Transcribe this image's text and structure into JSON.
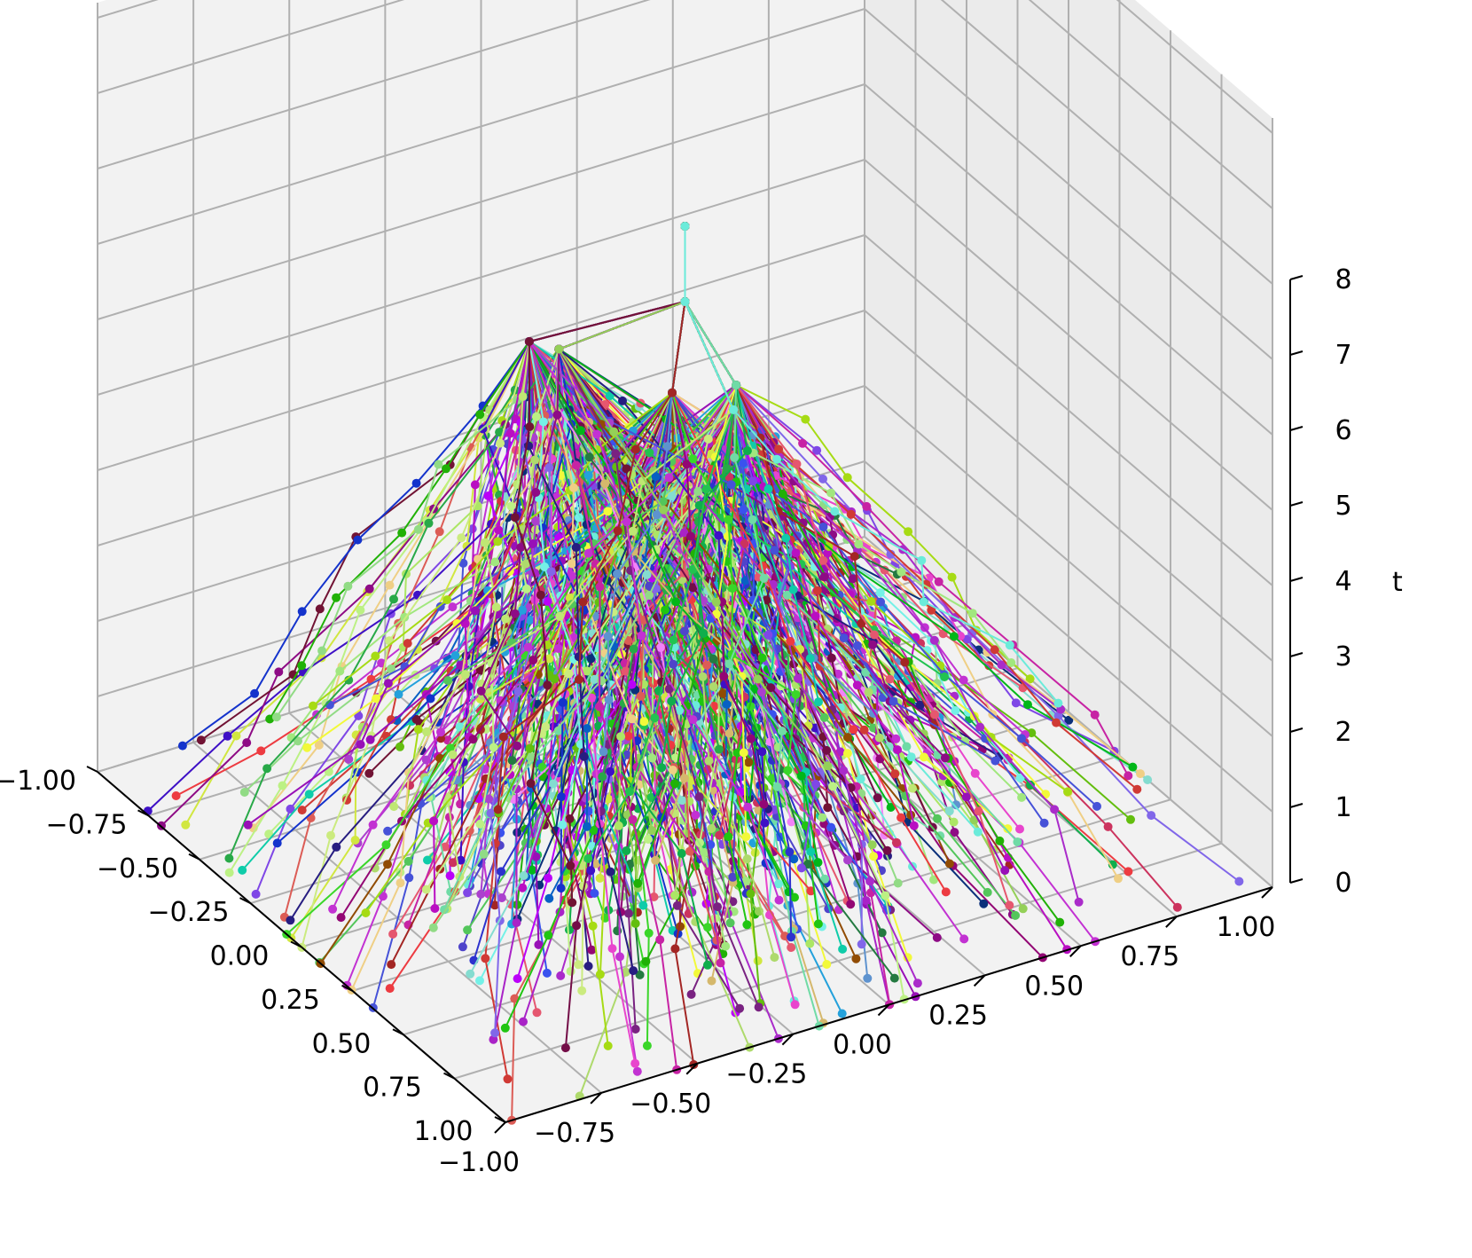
{
  "chart_data": {
    "type": "line",
    "projection": "3d",
    "title": "",
    "xlabel": "",
    "ylabel": "",
    "zlabel": "t",
    "xlim": [
      -1.0,
      1.0
    ],
    "ylim": [
      -1.0,
      1.0
    ],
    "zlim": [
      0,
      8
    ],
    "x_ticks": [
      "−1.00",
      "−0.75",
      "−0.50",
      "−0.25",
      "0.00",
      "0.25",
      "0.50",
      "0.75",
      "1.00"
    ],
    "y_ticks": [
      "−1.00",
      "−0.75",
      "−0.50",
      "−0.25",
      "0.00",
      "0.25",
      "0.50",
      "0.75",
      "1.00"
    ],
    "z_ticks": [
      "0",
      "1",
      "2",
      "3",
      "4",
      "5",
      "6",
      "7",
      "8"
    ],
    "grid": true,
    "legend": "none",
    "markers": "circle",
    "description_of_series": "Hundreds of random-color branching trajectories; all start at the root (x=0, y=0, t=8), descend through (0,0,7) and fan out over t = 7 → 0, ending spread across the x/y plane.",
    "root_path": [
      {
        "x": 0.0,
        "y": 0.0,
        "t": 8
      },
      {
        "x": 0.0,
        "y": 0.0,
        "t": 7
      }
    ],
    "main_branches_t6": [
      {
        "x": -0.35,
        "y": -0.22,
        "t": 6
      },
      {
        "x": -0.28,
        "y": -0.18,
        "t": 6
      },
      {
        "x": 0.05,
        "y": -0.06,
        "t": 6
      },
      {
        "x": 0.1,
        "y": 0.08,
        "t": 6
      },
      {
        "x": 0.2,
        "y": 0.02,
        "t": 6
      }
    ],
    "n_trajectories_approx": 600,
    "final_spread": "x and y in [-1, 1] at t = 0"
  }
}
